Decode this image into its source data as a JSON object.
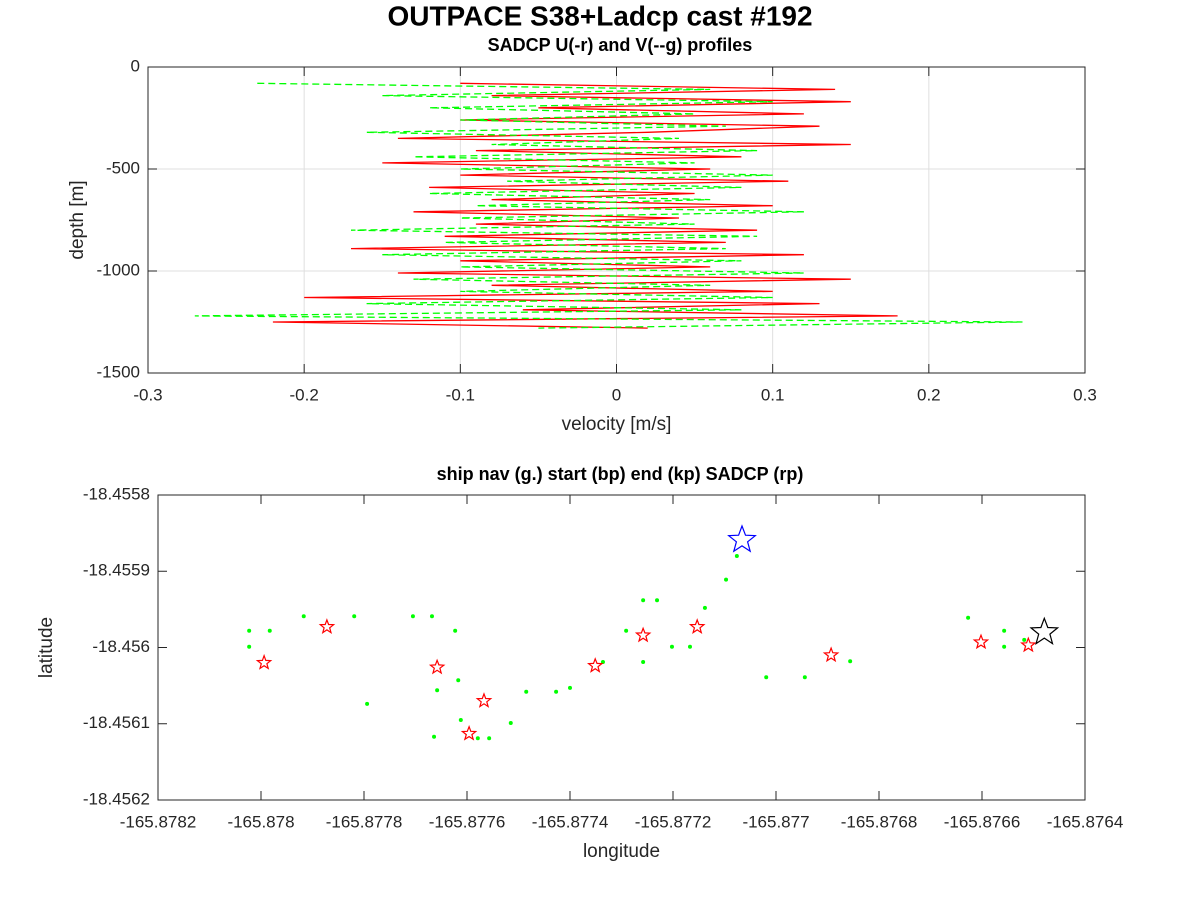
{
  "chart_data": [
    {
      "type": "line",
      "title": "OUTPACE S38+Ladcp cast #192",
      "subtitle": "SADCP U(-r) and V(--g) profiles",
      "xlabel": "velocity [m/s]",
      "ylabel": "depth [m]",
      "xlim": [
        -0.3,
        0.3
      ],
      "ylim": [
        -1500,
        0
      ],
      "xticks": [
        -0.3,
        -0.2,
        -0.1,
        0,
        0.1,
        0.2,
        0.3
      ],
      "yticks": [
        -1500,
        -1000,
        -500,
        0
      ],
      "grid": true,
      "series": [
        {
          "color": "#ff0000",
          "dashed": false,
          "x": [
            -0.1,
            0.14,
            -0.08,
            0.15,
            -0.05,
            0.12,
            -0.1,
            0.13,
            0.02,
            -0.14,
            0.15,
            -0.09,
            0.08,
            -0.15,
            0.06,
            -0.1,
            0.11,
            -0.12,
            0.05,
            -0.08,
            0.1,
            -0.13,
            0.04,
            -0.09,
            0.09,
            -0.11,
            0.07,
            -0.17,
            0.12,
            -0.1,
            0.06,
            -0.14,
            0.15,
            -0.08,
            0.1,
            -0.2,
            0.13,
            -0.06,
            0.18,
            -0.22,
            0.02
          ],
          "y": [
            -80,
            -110,
            -140,
            -170,
            -200,
            -230,
            -260,
            -290,
            -320,
            -350,
            -380,
            -410,
            -440,
            -470,
            -500,
            -530,
            -560,
            -590,
            -620,
            -650,
            -680,
            -710,
            -740,
            -770,
            -800,
            -830,
            -860,
            -890,
            -920,
            -950,
            -980,
            -1010,
            -1040,
            -1070,
            -1100,
            -1130,
            -1160,
            -1190,
            -1220,
            -1250,
            -1280
          ]
        },
        {
          "color": "#00ff00",
          "dashed": true,
          "x": [
            -0.23,
            0.06,
            -0.15,
            0.1,
            -0.12,
            0.05,
            -0.1,
            0.07,
            -0.16,
            0.04,
            -0.08,
            0.09,
            -0.13,
            0.05,
            -0.1,
            0.1,
            -0.07,
            0.08,
            -0.12,
            0.06,
            -0.09,
            0.12,
            -0.1,
            0.05,
            -0.17,
            0.09,
            -0.11,
            0.07,
            -0.15,
            0.08,
            -0.1,
            0.12,
            -0.13,
            0.06,
            -0.1,
            0.1,
            -0.16,
            0.08,
            -0.27,
            0.26,
            -0.05
          ],
          "y": [
            -80,
            -110,
            -140,
            -170,
            -200,
            -230,
            -260,
            -290,
            -320,
            -350,
            -380,
            -410,
            -440,
            -470,
            -500,
            -530,
            -560,
            -590,
            -620,
            -650,
            -680,
            -710,
            -740,
            -770,
            -800,
            -830,
            -860,
            -890,
            -920,
            -950,
            -980,
            -1010,
            -1040,
            -1070,
            -1100,
            -1130,
            -1160,
            -1190,
            -1220,
            -1250,
            -1280
          ]
        }
      ]
    },
    {
      "type": "scatter",
      "title": "ship nav (g.) start (bp) end (kp) SADCP (rp)",
      "xlabel": "longitude",
      "ylabel": "latitude",
      "xlim": [
        -165.8782,
        -165.8764
      ],
      "ylim": [
        -18.4562,
        -18.4558
      ],
      "xticks": [
        -165.8782,
        -165.878,
        -165.8778,
        -165.8776,
        -165.8774,
        -165.8772,
        -165.877,
        -165.8768,
        -165.8766,
        -165.8764
      ],
      "yticks": [
        -18.4562,
        -18.4561,
        -18.456,
        -18.4559,
        -18.4558
      ],
      "grid": false,
      "series": [
        {
          "color": "#00ff00",
          "marker": "dot",
          "x": [
            -165.878023,
            -165.878023,
            -165.877983,
            -165.877917,
            -165.877819,
            -165.877794,
            -165.877705,
            -165.877668,
            -165.877658,
            -165.877664,
            -165.877623,
            -165.877617,
            -165.877612,
            -165.877579,
            -165.877557,
            -165.877515,
            -165.877485,
            -165.877427,
            -165.8774,
            -165.877336,
            -165.877291,
            -165.877258,
            -165.877231,
            -165.877258,
            -165.877202,
            -165.877167,
            -165.877138,
            -165.877097,
            -165.877076,
            -165.877019,
            -165.876944,
            -165.876856,
            -165.876627,
            -165.876557,
            -165.876557,
            -165.876518
          ],
          "y": [
            -18.455978,
            -18.455999,
            -18.455978,
            -18.455959,
            -18.455959,
            -18.456074,
            -18.455959,
            -18.455959,
            -18.456056,
            -18.456117,
            -18.455978,
            -18.456043,
            -18.456095,
            -18.456119,
            -18.456119,
            -18.456099,
            -18.456058,
            -18.456058,
            -18.456053,
            -18.456019,
            -18.455978,
            -18.455938,
            -18.455938,
            -18.456019,
            -18.455999,
            -18.455999,
            -18.455948,
            -18.455911,
            -18.45588,
            -18.456039,
            -18.456039,
            -18.456018,
            -18.455961,
            -18.455978,
            -18.455999,
            -18.45599
          ]
        },
        {
          "color": "#ff0000",
          "marker": "star",
          "x": [
            -165.877994,
            -165.877872,
            -165.877658,
            -165.877567,
            -165.877596,
            -165.877351,
            -165.877258,
            -165.877153,
            -165.876893,
            -165.876602,
            -165.87651
          ],
          "y": [
            -18.45602,
            -18.455973,
            -18.456026,
            -18.45607,
            -18.456113,
            -18.456024,
            -18.455984,
            -18.455973,
            -18.45601,
            -18.455993,
            -18.455997
          ]
        },
        {
          "color": "#0000ff",
          "marker": "big-star",
          "x": [
            -165.877066
          ],
          "y": [
            -18.455859
          ]
        },
        {
          "color": "#000000",
          "marker": "big-star",
          "x": [
            -165.876479
          ],
          "y": [
            -18.45598
          ]
        }
      ]
    }
  ]
}
